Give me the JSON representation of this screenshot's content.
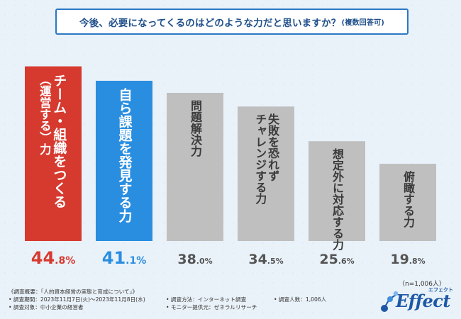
{
  "title": {
    "main": "今後、必要になってくるのはどのような力だと思いますか？",
    "sub": "(複数回答可)"
  },
  "chart_data": {
    "type": "bar",
    "title": "今後、必要になってくるのはどのような力だと思いますか？(複数回答可)",
    "categories": [
      "チーム・組織をつくる(運営する)力",
      "自ら課題を発見する力",
      "問題解決力",
      "失敗を恐れずチャレンジする力",
      "想定外に対応する力",
      "俯瞰する力"
    ],
    "values": [
      44.8,
      41.1,
      38.0,
      34.5,
      25.6,
      19.8
    ],
    "value_labels": [
      {
        "int": "44",
        "dec": ".8%"
      },
      {
        "int": "41",
        "dec": ".1%"
      },
      {
        "int": "38",
        "dec": ".0%"
      },
      {
        "int": "34",
        "dec": ".5%"
      },
      {
        "int": "25",
        "dec": ".6%"
      },
      {
        "int": "19",
        "dec": ".8%"
      }
    ],
    "colors": [
      "#d63a2f",
      "#2a8ee0",
      "#bfbfbf",
      "#bfbfbf",
      "#bfbfbf",
      "#bfbfbf"
    ],
    "label_colors": [
      "#ffffff",
      "#ffffff",
      "#3a3a3a",
      "#3a3a3a",
      "#3a3a3a",
      "#3a3a3a"
    ],
    "value_colors": [
      "#d63a2f",
      "#2a8ee0",
      "#555555",
      "#555555",
      "#555555",
      "#555555"
    ],
    "ylim": [
      0,
      50
    ],
    "xlabel": "",
    "ylabel": "",
    "grid": false
  },
  "bar_text": [
    [
      [
        "チーム・組織をつくる"
      ],
      [
        "（運営する）力",
        "small-first"
      ]
    ],
    [
      [
        "自ら課題を発見する力"
      ]
    ],
    [
      [
        "問題解決力"
      ]
    ],
    [
      [
        "失敗を恐れず"
      ],
      [
        "チャレンジする力"
      ]
    ],
    [
      [
        "想定外に対応する力"
      ]
    ],
    [
      [
        "俯瞰する力"
      ]
    ]
  ],
  "sample_note": "（n=1,006人）",
  "footer": {
    "overview": "《調査概要：「人的資本経営の実態と育成について」》",
    "period": "• 調査期間：2023年11月7日(火)〜2023年11月8日(水)",
    "target": "• 調査対象：中小企業の経営者",
    "method": "• 調査方法：インターネット調査",
    "provider": "• モニター提供元：ゼネラルリサーチ",
    "respondents": "• 調査人数：1,006人"
  },
  "logo": {
    "word": "Effect",
    "kana": "エフェクト",
    "accent": "#1d58a6"
  }
}
